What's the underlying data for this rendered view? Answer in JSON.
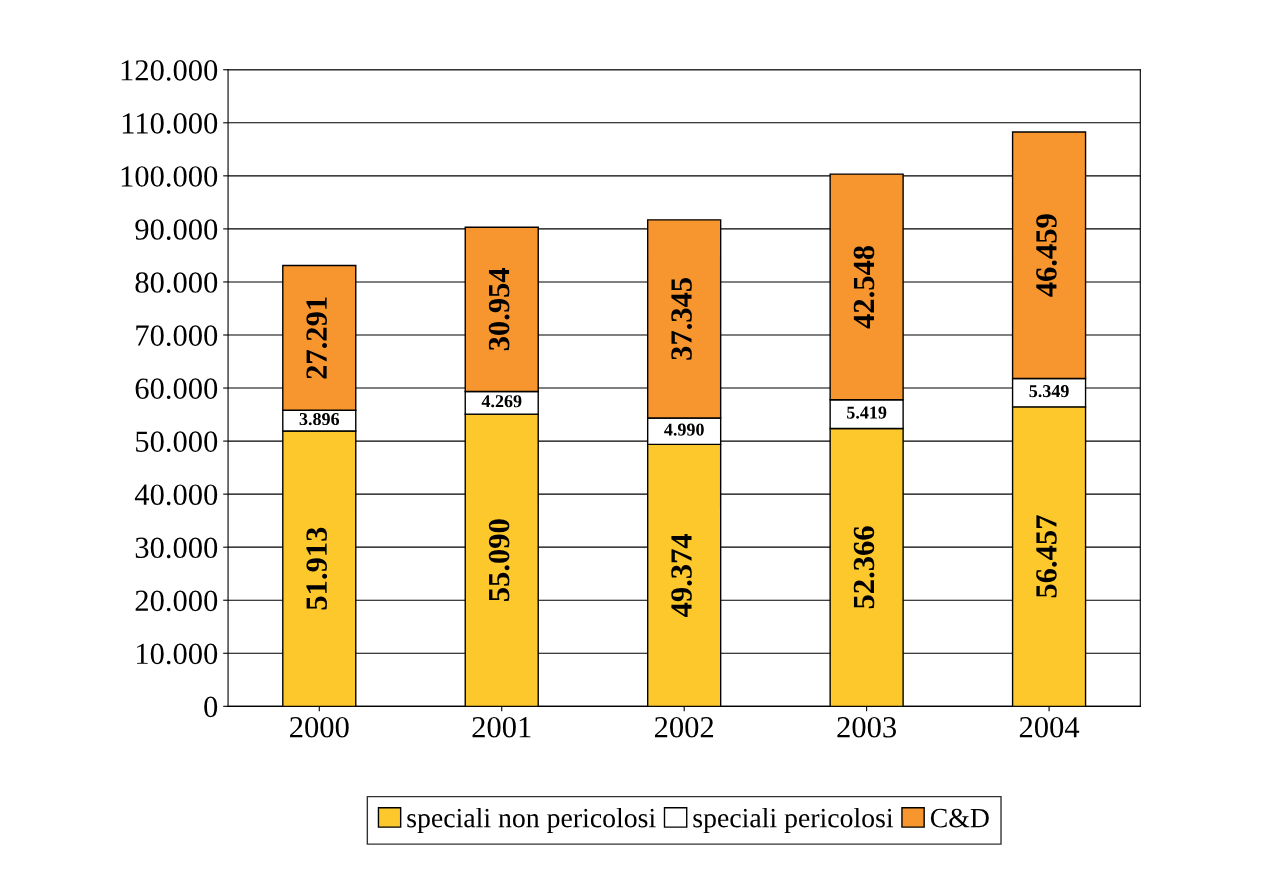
{
  "chart_data": {
    "type": "bar",
    "stacked": true,
    "categories": [
      "2000",
      "2001",
      "2002",
      "2003",
      "2004"
    ],
    "series": [
      {
        "name": "speciali non pericolosi",
        "color": "#fcc82c",
        "values": [
          51913,
          55090,
          49374,
          52366,
          56457
        ],
        "value_labels": [
          "51.913",
          "55.090",
          "49.374",
          "52.366",
          "56.457"
        ]
      },
      {
        "name": "speciali pericolosi",
        "color": "#ffffff",
        "values": [
          3896,
          4269,
          4990,
          5419,
          5349
        ],
        "value_labels": [
          "3.896",
          "4.269",
          "4.990",
          "5.419",
          "5.349"
        ]
      },
      {
        "name": "C&D",
        "color": "#f7952e",
        "values": [
          27291,
          30954,
          37345,
          42548,
          46459
        ],
        "value_labels": [
          "27.291",
          "30.954",
          "37.345",
          "42.548",
          "46.459"
        ]
      }
    ],
    "ylim": [
      0,
      120000
    ],
    "yticks": [
      0,
      {
        "value": 10000,
        "label": "10.000"
      },
      {
        "value": 20000,
        "label": "20.000"
      },
      {
        "value": 30000,
        "label": "30.000"
      },
      {
        "value": 40000,
        "label": "40.000"
      },
      {
        "value": 50000,
        "label": "50.000"
      },
      {
        "value": 60000,
        "label": "60.000"
      },
      {
        "value": 70000,
        "label": "70.000"
      },
      {
        "value": 80000,
        "label": "80.000"
      },
      {
        "value": 90000,
        "label": "90.000"
      },
      {
        "value": 100000,
        "label": "100.000"
      },
      {
        "value": 110000,
        "label": "110.000"
      },
      {
        "value": 120000,
        "label": "120.000"
      }
    ],
    "grid": "y",
    "legend": "bottom"
  }
}
